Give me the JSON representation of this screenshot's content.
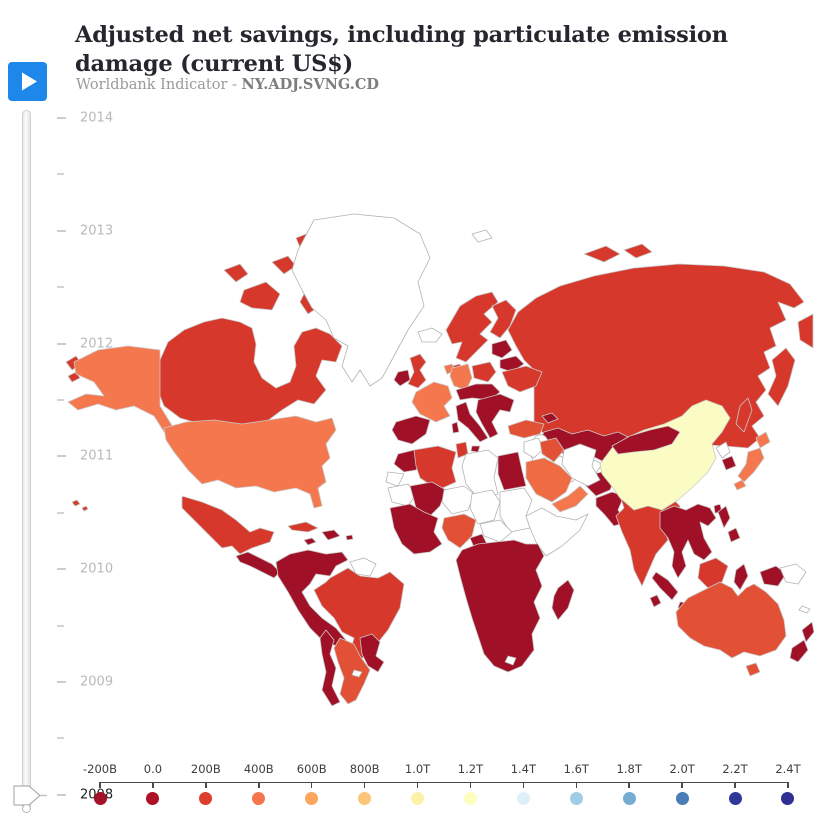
{
  "header": {
    "title": "Adjusted net savings, including particulate emission damage (current US$)",
    "subtitle_prefix": "Worldbank Indicator - ",
    "indicator_code": "NY.ADJ.SVNG.CD"
  },
  "play_button": {
    "color": "#1d87ea",
    "icon": "play-icon"
  },
  "timeline": {
    "years": [
      "2014",
      "2013",
      "2012",
      "2011",
      "2010",
      "2009",
      "2008"
    ],
    "selected_year": "2008"
  },
  "legend": {
    "items": [
      {
        "label": "-200B",
        "color": "#a31228"
      },
      {
        "label": "0.0",
        "color": "#ad1126"
      },
      {
        "label": "200B",
        "color": "#dc3d2d"
      },
      {
        "label": "400B",
        "color": "#f5764e"
      },
      {
        "label": "600B",
        "color": "#fca55d"
      },
      {
        "label": "800B",
        "color": "#fcc577"
      },
      {
        "label": "1.0T",
        "color": "#fbf1a9"
      },
      {
        "label": "1.2T",
        "color": "#fdfdbe"
      },
      {
        "label": "1.4T",
        "color": "#dfeff7"
      },
      {
        "label": "1.6T",
        "color": "#9fcde5"
      },
      {
        "label": "1.8T",
        "color": "#74add1"
      },
      {
        "label": "2.0T",
        "color": "#4a7db7"
      },
      {
        "label": "2.2T",
        "color": "#30379b"
      },
      {
        "label": "2.4T",
        "color": "#2d3092"
      }
    ]
  },
  "map": {
    "border_color": "#c9c9c9",
    "no_data_border": "#b3b3b3",
    "no_data_color": "#ffffff",
    "region_colors": {
      "russia": "#d6392b",
      "aleutian-islands": "#d6392b",
      "canada": "#d6392b",
      "alaska": "#f5774e",
      "usa": "#f5774e",
      "mexico": "#d6392b",
      "central-america": "#a01127",
      "cuba": "#d6392b",
      "hispaniola": "#a01127",
      "jamaica": "#a01127",
      "puerto-rico": "#a01127",
      "hawaii": "#d6392b",
      "greenland": "#ffffff",
      "iceland": "#ffffff",
      "svalbard": "#ffffff",
      "andean-states": "#a01127",
      "guyanas": "#ffffff",
      "brazil": "#d6392b",
      "paraguay-uruguay": "#a01127",
      "argentina": "#e25136",
      "chile": "#a01127",
      "falkland": "#ffffff",
      "uk": "#d6392b",
      "ireland": "#a01127",
      "nordics": "#d6392b",
      "denmark": "#d6392b",
      "benelux": "#f5774e",
      "france": "#f5774e",
      "germany": "#f5774e",
      "iberia": "#a01127",
      "italy": "#a01127",
      "central-europe": "#a01127",
      "balkans": "#a01127",
      "baltics-belarus": "#a01127",
      "poland": "#d6392b",
      "ukraine": "#d6392b",
      "kazakhstan": "#a01127",
      "caspian-sea": "#ffffff",
      "turk-uzbek": "#ffffff",
      "kyrgyz-tajik": "#a01127",
      "afghanistan": "#a01127",
      "pakistan": "#a01127",
      "india": "#d6392b",
      "sri-lanka": "#a01127",
      "bangladesh": "#a01127",
      "turkey": "#e25136",
      "caucasus": "#a01127",
      "syria-jordan": "#ffffff",
      "iraq": "#e25136",
      "iran": "#ffffff",
      "saudi-arabia": "#ee6b43",
      "yemen-oman": "#f5774e",
      "morocco": "#a01127",
      "western-sahara": "#ffffff",
      "algeria": "#d6392b",
      "tunisia": "#d6392b",
      "libya": "#ffffff",
      "egypt": "#a01127",
      "mauritania": "#ffffff",
      "mali": "#a01127",
      "niger": "#ffffff",
      "chad": "#ffffff",
      "sudan": "#ffffff",
      "horn-of-africa": "#ffffff",
      "car-south-sudan": "#ffffff",
      "west-africa": "#a01127",
      "nigeria": "#e25136",
      "cameroon": "#a01127",
      "sub-saharan-africa": "#a01127",
      "lesotho": "#ffffff",
      "madagascar": "#a01127",
      "china": "#fbfbc4",
      "mongolia": "#a01127",
      "taiwan": "#a01127",
      "north-korea": "#ffffff",
      "south-korea": "#a01127",
      "japan": "#f5774e",
      "se-asia": "#a01127",
      "sumatra": "#a01127",
      "java": "#a01127",
      "borneo": "#d6392b",
      "sulawesi": "#a01127",
      "philippines": "#a01127",
      "west-papua": "#a01127",
      "png": "#ffffff",
      "australia": "#e25136",
      "tasmania": "#e25136",
      "new-zealand": "#a01127",
      "pacific-islands": "#ffffff"
    }
  }
}
